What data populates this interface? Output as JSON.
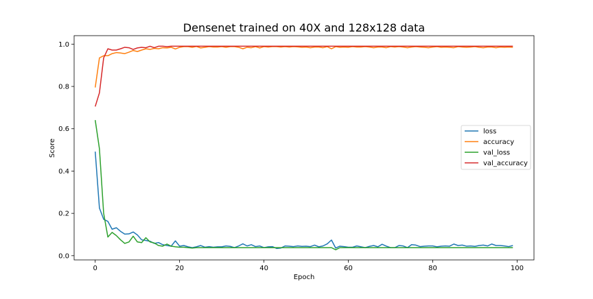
{
  "chart_data": {
    "type": "line",
    "title": "Densenet trained on 40X and 128x128 data",
    "xlabel": "Epoch",
    "ylabel": "Score",
    "xlim": [
      -5,
      104
    ],
    "ylim": [
      -0.02,
      1.04
    ],
    "xticks": [
      0,
      20,
      40,
      60,
      80,
      100
    ],
    "yticks": [
      0.0,
      0.2,
      0.4,
      0.6,
      0.8,
      1.0
    ],
    "xtick_labels": [
      "0",
      "20",
      "40",
      "60",
      "80",
      "100"
    ],
    "ytick_labels": [
      "0.0",
      "0.2",
      "0.4",
      "0.6",
      "0.8",
      "1.0"
    ],
    "grid": false,
    "legend_position": "center-right",
    "series": [
      {
        "name": "loss",
        "color": "#1f77b4",
        "values": [
          0.492,
          0.225,
          0.172,
          0.162,
          0.125,
          0.132,
          0.115,
          0.102,
          0.103,
          0.112,
          0.098,
          0.075,
          0.072,
          0.068,
          0.058,
          0.062,
          0.052,
          0.048,
          0.045,
          0.07,
          0.045,
          0.048,
          0.042,
          0.038,
          0.042,
          0.048,
          0.04,
          0.043,
          0.04,
          0.042,
          0.042,
          0.046,
          0.044,
          0.038,
          0.046,
          0.056,
          0.046,
          0.052,
          0.043,
          0.046,
          0.038,
          0.042,
          0.043,
          0.034,
          0.036,
          0.046,
          0.045,
          0.043,
          0.046,
          0.044,
          0.045,
          0.043,
          0.05,
          0.042,
          0.046,
          0.056,
          0.074,
          0.036,
          0.045,
          0.043,
          0.04,
          0.04,
          0.046,
          0.042,
          0.038,
          0.044,
          0.048,
          0.042,
          0.054,
          0.045,
          0.038,
          0.038,
          0.048,
          0.046,
          0.038,
          0.052,
          0.05,
          0.043,
          0.045,
          0.046,
          0.046,
          0.042,
          0.045,
          0.046,
          0.045,
          0.055,
          0.048,
          0.05,
          0.045,
          0.046,
          0.044,
          0.048,
          0.05,
          0.046,
          0.055,
          0.048,
          0.048,
          0.046,
          0.043,
          0.048
        ]
      },
      {
        "name": "accuracy",
        "color": "#ff7f0e",
        "values": [
          0.795,
          0.935,
          0.945,
          0.945,
          0.955,
          0.96,
          0.958,
          0.955,
          0.962,
          0.97,
          0.965,
          0.972,
          0.978,
          0.975,
          0.98,
          0.978,
          0.983,
          0.982,
          0.985,
          0.977,
          0.985,
          0.988,
          0.988,
          0.985,
          0.989,
          0.982,
          0.985,
          0.988,
          0.986,
          0.986,
          0.988,
          0.985,
          0.988,
          0.988,
          0.985,
          0.978,
          0.985,
          0.983,
          0.988,
          0.982,
          0.988,
          0.986,
          0.988,
          0.988,
          0.986,
          0.988,
          0.986,
          0.988,
          0.987,
          0.985,
          0.986,
          0.983,
          0.986,
          0.986,
          0.983,
          0.988,
          0.978,
          0.988,
          0.985,
          0.986,
          0.985,
          0.988,
          0.986,
          0.986,
          0.988,
          0.986,
          0.983,
          0.986,
          0.986,
          0.983,
          0.988,
          0.986,
          0.988,
          0.986,
          0.983,
          0.986,
          0.988,
          0.986,
          0.985,
          0.983,
          0.986,
          0.988,
          0.985,
          0.986,
          0.985,
          0.983,
          0.988,
          0.986,
          0.985,
          0.986,
          0.988,
          0.985,
          0.983,
          0.986,
          0.986,
          0.983,
          0.986,
          0.985,
          0.986,
          0.985
        ]
      },
      {
        "name": "val_loss",
        "color": "#2ca02c",
        "values": [
          0.641,
          0.505,
          0.2,
          0.088,
          0.11,
          0.095,
          0.075,
          0.058,
          0.065,
          0.092,
          0.065,
          0.062,
          0.085,
          0.065,
          0.06,
          0.048,
          0.045,
          0.055,
          0.045,
          0.042,
          0.04,
          0.04,
          0.038,
          0.036,
          0.038,
          0.038,
          0.038,
          0.038,
          0.038,
          0.038,
          0.038,
          0.038,
          0.038,
          0.038,
          0.038,
          0.038,
          0.038,
          0.038,
          0.038,
          0.038,
          0.038,
          0.038,
          0.038,
          0.038,
          0.038,
          0.038,
          0.038,
          0.038,
          0.038,
          0.038,
          0.038,
          0.038,
          0.038,
          0.038,
          0.038,
          0.038,
          0.038,
          0.028,
          0.038,
          0.038,
          0.038,
          0.038,
          0.038,
          0.038,
          0.038,
          0.038,
          0.038,
          0.038,
          0.038,
          0.038,
          0.038,
          0.038,
          0.038,
          0.038,
          0.038,
          0.038,
          0.038,
          0.038,
          0.038,
          0.038,
          0.038,
          0.038,
          0.038,
          0.038,
          0.038,
          0.038,
          0.038,
          0.038,
          0.038,
          0.038,
          0.038,
          0.038,
          0.038,
          0.038,
          0.038,
          0.038,
          0.038,
          0.038,
          0.038,
          0.038
        ]
      },
      {
        "name": "val_accuracy",
        "color": "#d62728",
        "values": [
          0.705,
          0.77,
          0.935,
          0.978,
          0.972,
          0.972,
          0.978,
          0.985,
          0.983,
          0.975,
          0.982,
          0.985,
          0.983,
          0.99,
          0.983,
          0.99,
          0.99,
          0.988,
          0.99,
          0.99,
          0.99,
          0.99,
          0.99,
          0.99,
          0.99,
          0.99,
          0.99,
          0.99,
          0.99,
          0.99,
          0.99,
          0.99,
          0.99,
          0.99,
          0.99,
          0.99,
          0.99,
          0.99,
          0.99,
          0.99,
          0.99,
          0.99,
          0.99,
          0.99,
          0.99,
          0.99,
          0.99,
          0.99,
          0.99,
          0.99,
          0.99,
          0.99,
          0.99,
          0.99,
          0.99,
          0.99,
          0.99,
          0.99,
          0.99,
          0.99,
          0.99,
          0.99,
          0.99,
          0.99,
          0.99,
          0.99,
          0.99,
          0.99,
          0.99,
          0.99,
          0.99,
          0.99,
          0.99,
          0.99,
          0.99,
          0.99,
          0.99,
          0.99,
          0.99,
          0.99,
          0.99,
          0.99,
          0.99,
          0.99,
          0.99,
          0.99,
          0.99,
          0.99,
          0.99,
          0.99,
          0.99,
          0.99,
          0.99,
          0.99,
          0.99,
          0.99,
          0.99,
          0.99,
          0.99,
          0.99
        ]
      }
    ]
  }
}
